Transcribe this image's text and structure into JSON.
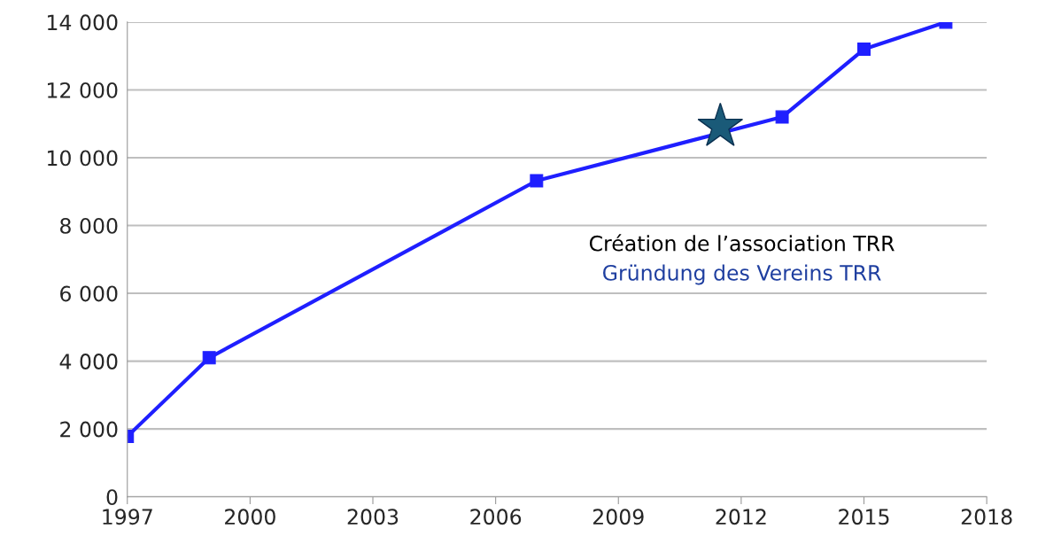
{
  "chart_data": {
    "type": "line",
    "x": [
      1997,
      1999,
      2007,
      2013,
      2015,
      2017
    ],
    "series": [
      {
        "color": "#1f1fff",
        "values": [
          1780,
          4100,
          9320,
          11200,
          13200,
          14000
        ]
      }
    ],
    "marker": "square",
    "line_style": "solid",
    "grid": "y",
    "legend": false,
    "xlim": [
      1997,
      2018
    ],
    "xticks": [
      1997,
      2000,
      2003,
      2006,
      2009,
      2012,
      2015,
      2018
    ],
    "ylim": [
      0,
      14000
    ],
    "yticks": [
      0,
      {
        "value": 2000,
        "label": "2 000"
      },
      {
        "value": 4000,
        "label": "4 000"
      },
      {
        "value": 6000,
        "label": "6 000"
      },
      {
        "value": 8000,
        "label": "8 000"
      },
      {
        "value": 10000,
        "label": "10 000"
      },
      {
        "value": 12000,
        "label": "12 000"
      },
      {
        "value": 14000,
        "label": "14 000"
      }
    ],
    "annotations": [
      "Création de l’association TRR",
      "Gründung des Vereins TRR"
    ]
  }
}
